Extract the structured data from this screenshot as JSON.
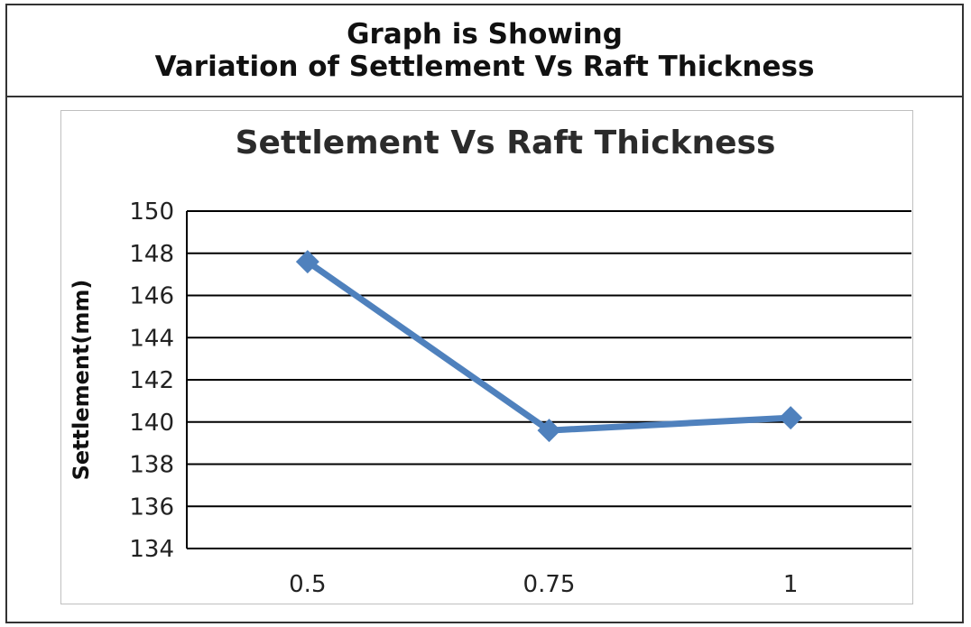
{
  "header": {
    "line1": "Graph is Showing",
    "line2": "Variation of Settlement Vs Raft Thickness"
  },
  "colors": {
    "series": "#4f81bd",
    "grid": "#000000"
  },
  "chart_data": {
    "type": "line",
    "title": "Settlement Vs Raft Thickness",
    "xlabel": "",
    "ylabel": "Settlement(mm)",
    "categories": [
      "0.5",
      "0.75",
      "1"
    ],
    "series": [
      {
        "values": [
          147.6,
          139.6,
          140.2
        ]
      }
    ],
    "ylim": [
      134,
      150
    ],
    "yticks": [
      134,
      136,
      138,
      140,
      142,
      144,
      146,
      148,
      150
    ],
    "grid": true,
    "legend": "none",
    "marker": "diamond"
  }
}
